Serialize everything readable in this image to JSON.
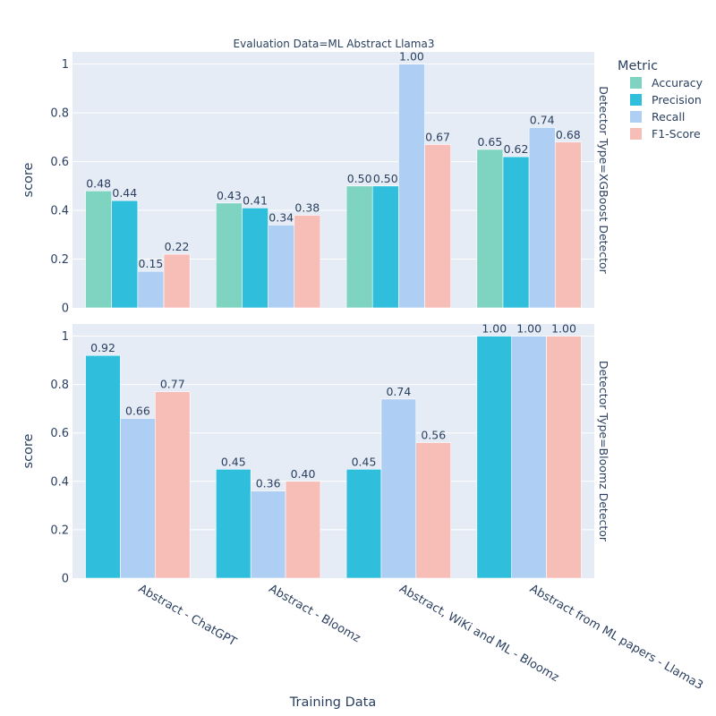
{
  "chart_data": {
    "type": "bar",
    "title": "Evaluation Data=ML Abstract Llama3",
    "xlabel": "Training Data",
    "ylabel": "score",
    "ylim": [
      0,
      1.05
    ],
    "yticks": [
      "0",
      "0.2",
      "0.4",
      "0.6",
      "0.8",
      "1"
    ],
    "grid": true,
    "categories": [
      "Abstract - ChatGPT",
      "Abstract - Bloomz",
      "Abstract, WiKi and ML - Bloomz",
      "Abstract from ML papers - Llama3"
    ],
    "legend": {
      "title": "Metric",
      "position": "right",
      "items": [
        {
          "name": "Accuracy",
          "color": "#7fd3c1"
        },
        {
          "name": "Precision",
          "color": "#2fbfdc"
        },
        {
          "name": "Recall",
          "color": "#aecff3"
        },
        {
          "name": "F1-Score",
          "color": "#f7bdb7"
        }
      ]
    },
    "panels": [
      {
        "facet_label": "Detector Type=XGBoost Detector",
        "groups": [
          [
            {
              "metric": 0,
              "value": 0.48,
              "label": "0.48"
            },
            {
              "metric": 1,
              "value": 0.44,
              "label": "0.44"
            },
            {
              "metric": 2,
              "value": 0.15,
              "label": "0.15"
            },
            {
              "metric": 3,
              "value": 0.22,
              "label": "0.22"
            }
          ],
          [
            {
              "metric": 0,
              "value": 0.43,
              "label": "0.43"
            },
            {
              "metric": 1,
              "value": 0.41,
              "label": "0.41"
            },
            {
              "metric": 2,
              "value": 0.34,
              "label": "0.34"
            },
            {
              "metric": 3,
              "value": 0.38,
              "label": "0.38"
            }
          ],
          [
            {
              "metric": 0,
              "value": 0.5,
              "label": "0.50"
            },
            {
              "metric": 1,
              "value": 0.5,
              "label": "0.50"
            },
            {
              "metric": 2,
              "value": 1.0,
              "label": "1.00"
            },
            {
              "metric": 3,
              "value": 0.67,
              "label": "0.67"
            }
          ],
          [
            {
              "metric": 0,
              "value": 0.65,
              "label": "0.65"
            },
            {
              "metric": 1,
              "value": 0.62,
              "label": "0.62"
            },
            {
              "metric": 2,
              "value": 0.74,
              "label": "0.74"
            },
            {
              "metric": 3,
              "value": 0.68,
              "label": "0.68"
            }
          ]
        ]
      },
      {
        "facet_label": "Detector Type=Bloomz Detector",
        "groups": [
          [
            {
              "metric": 1,
              "value": 0.92,
              "label": "0.92"
            },
            {
              "metric": 2,
              "value": 0.66,
              "label": "0.66"
            },
            {
              "metric": 3,
              "value": 0.77,
              "label": "0.77"
            }
          ],
          [
            {
              "metric": 1,
              "value": 0.45,
              "label": "0.45"
            },
            {
              "metric": 2,
              "value": 0.36,
              "label": "0.36"
            },
            {
              "metric": 3,
              "value": 0.4,
              "label": "0.40"
            }
          ],
          [
            {
              "metric": 1,
              "value": 0.45,
              "label": "0.45"
            },
            {
              "metric": 2,
              "value": 0.74,
              "label": "0.74"
            },
            {
              "metric": 3,
              "value": 0.56,
              "label": "0.56"
            }
          ],
          [
            {
              "metric": 1,
              "value": 1.0,
              "label": "1.00"
            },
            {
              "metric": 2,
              "value": 1.0,
              "label": "1.00"
            },
            {
              "metric": 3,
              "value": 1.0,
              "label": "1.00"
            }
          ]
        ]
      }
    ]
  }
}
